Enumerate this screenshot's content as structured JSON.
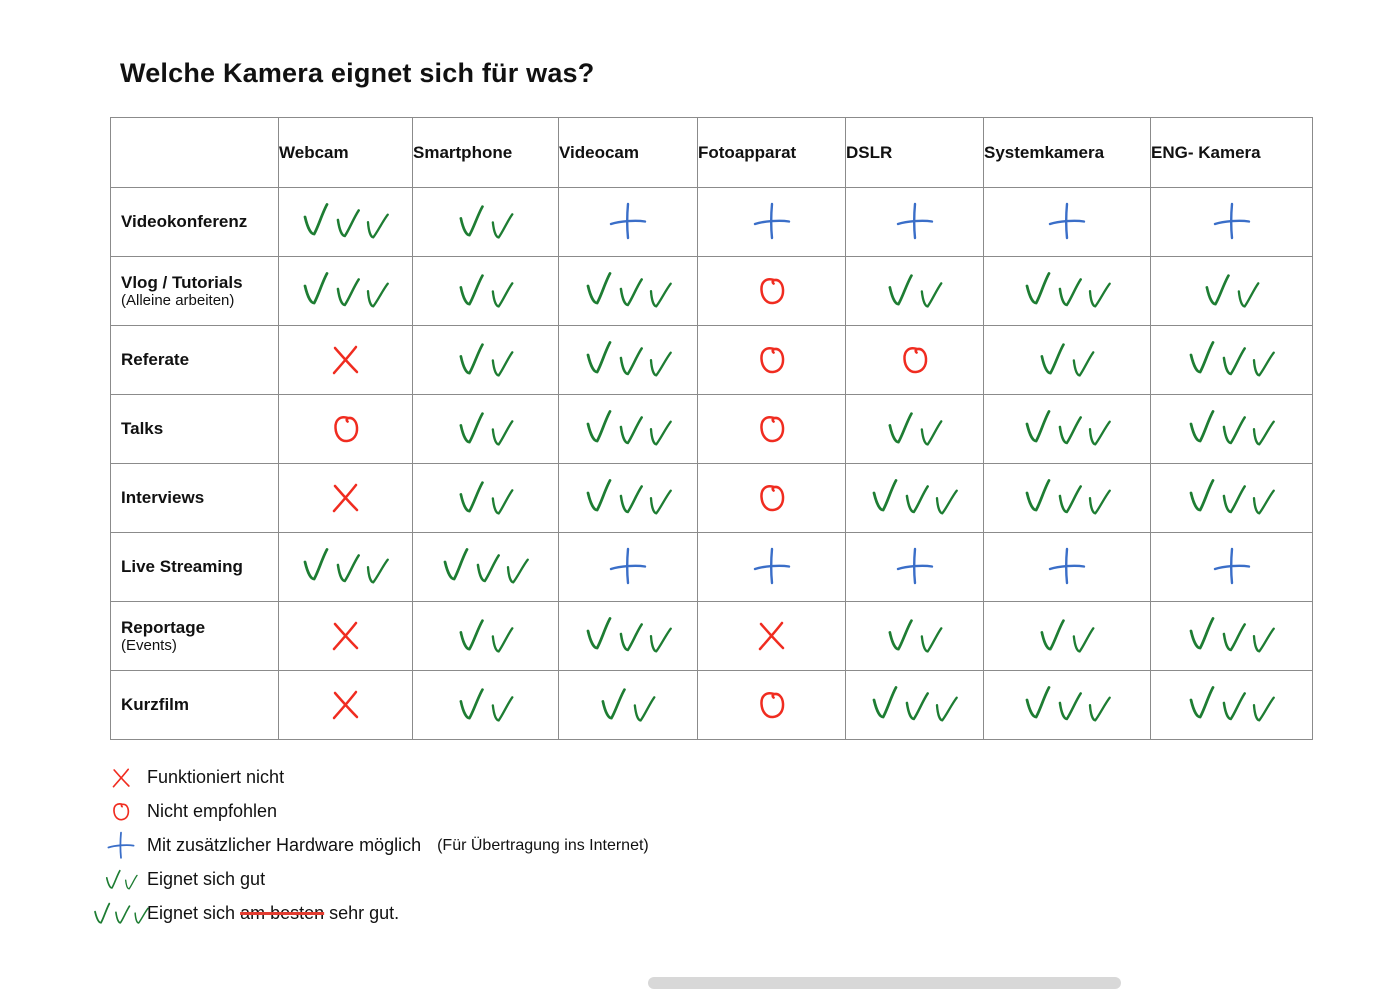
{
  "title": "Welche Kamera eignet sich für was?",
  "table": {
    "columns": [
      "Webcam",
      "Smartphone",
      "Videocam",
      "Fotoapparat",
      "DSLR",
      "Systemkamera",
      "ENG- Kamera"
    ],
    "rows": [
      {
        "label": "Videokonferenz",
        "sublabel": "",
        "cells": [
          "check3",
          "check2",
          "plus",
          "plus",
          "plus",
          "plus",
          "plus"
        ]
      },
      {
        "label": "Vlog / Tutorials",
        "sublabel": "(Alleine arbeiten)",
        "cells": [
          "check3",
          "check2",
          "check3",
          "circle",
          "check2",
          "check3",
          "check2"
        ]
      },
      {
        "label": "Referate",
        "sublabel": "",
        "cells": [
          "cross",
          "check2",
          "check3",
          "circle",
          "circle",
          "check2",
          "check3"
        ]
      },
      {
        "label": "Talks",
        "sublabel": "",
        "cells": [
          "circle",
          "check2",
          "check3",
          "circle",
          "check2",
          "check3",
          "check3"
        ]
      },
      {
        "label": "Interviews",
        "sublabel": "",
        "cells": [
          "cross",
          "check2",
          "check3",
          "circle",
          "check3",
          "check3",
          "check3"
        ]
      },
      {
        "label": "Live Streaming",
        "sublabel": "",
        "cells": [
          "check3",
          "check3",
          "plus",
          "plus",
          "plus",
          "plus",
          "plus"
        ]
      },
      {
        "label": "Reportage",
        "sublabel": "(Events)",
        "cells": [
          "cross",
          "check2",
          "check3",
          "cross",
          "check2",
          "check2",
          "check3"
        ]
      },
      {
        "label": "Kurzfilm",
        "sublabel": "",
        "cells": [
          "cross",
          "check2",
          "check2",
          "circle",
          "check3",
          "check3",
          "check3"
        ]
      }
    ]
  },
  "legend": {
    "items": [
      {
        "symbol": "cross",
        "text": "Funktioniert nicht"
      },
      {
        "symbol": "circle",
        "text": "Nicht empfohlen"
      },
      {
        "symbol": "plus",
        "text": "Mit zusätzlicher Hardware möglich",
        "note": "(Für Übertragung ins Internet)"
      },
      {
        "symbol": "check2",
        "text": "Eignet sich gut"
      },
      {
        "symbol": "check3",
        "text": "Eignet sich",
        "struck": "am besten",
        "text_after": "sehr gut."
      }
    ]
  },
  "colors": {
    "green": "#1e7d33",
    "red": "#f02c20",
    "blue": "#3a6ec8",
    "border": "#8b8b8b"
  }
}
